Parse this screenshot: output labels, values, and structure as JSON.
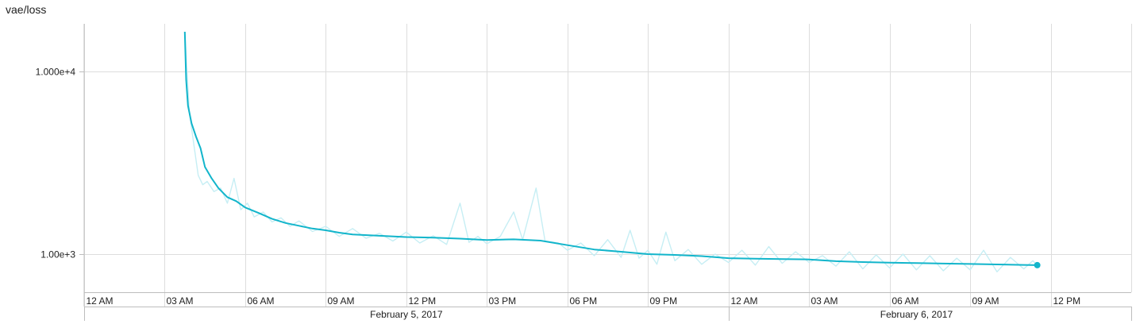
{
  "chart_data": {
    "type": "line",
    "title": "vae/loss",
    "y_scale": "log",
    "y_ticks": [
      {
        "value": 10000,
        "label": "1.000e+4"
      },
      {
        "value": 1000,
        "label": "1.00e+3"
      }
    ],
    "ylim": [
      600,
      18000
    ],
    "x_range": [
      "2017-02-05 00:00",
      "2017-02-06 15:00"
    ],
    "x_ticks": [
      {
        "time": "2017-02-05 00:00",
        "label": "12 AM"
      },
      {
        "time": "2017-02-05 03:00",
        "label": "03 AM"
      },
      {
        "time": "2017-02-05 06:00",
        "label": "06 AM"
      },
      {
        "time": "2017-02-05 09:00",
        "label": "09 AM"
      },
      {
        "time": "2017-02-05 12:00",
        "label": "12 PM"
      },
      {
        "time": "2017-02-05 15:00",
        "label": "03 PM"
      },
      {
        "time": "2017-02-05 18:00",
        "label": "06 PM"
      },
      {
        "time": "2017-02-05 21:00",
        "label": "09 PM"
      },
      {
        "time": "2017-02-06 00:00",
        "label": "12 AM"
      },
      {
        "time": "2017-02-06 03:00",
        "label": "03 AM"
      },
      {
        "time": "2017-02-06 06:00",
        "label": "06 AM"
      },
      {
        "time": "2017-02-06 09:00",
        "label": "09 AM"
      },
      {
        "time": "2017-02-06 12:00",
        "label": "12 PM"
      }
    ],
    "date_labels": [
      {
        "time": "2017-02-05 12:00",
        "label": "February 5, 2017"
      },
      {
        "time": "2017-02-06 07:00",
        "label": "February 6, 2017"
      }
    ],
    "grid": true,
    "series": [
      {
        "role": "smoothed",
        "color": "#12b5cb",
        "points": [
          [
            "2017-02-05 03:45",
            16500
          ],
          [
            "2017-02-05 03:48",
            9000
          ],
          [
            "2017-02-05 03:52",
            6500
          ],
          [
            "2017-02-05 04:00",
            5200
          ],
          [
            "2017-02-05 04:10",
            4400
          ],
          [
            "2017-02-05 04:20",
            3800
          ],
          [
            "2017-02-05 04:30",
            3000
          ],
          [
            "2017-02-05 04:45",
            2600
          ],
          [
            "2017-02-05 05:00",
            2300
          ],
          [
            "2017-02-05 05:20",
            2050
          ],
          [
            "2017-02-05 05:40",
            1950
          ],
          [
            "2017-02-05 06:00",
            1800
          ],
          [
            "2017-02-05 06:30",
            1680
          ],
          [
            "2017-02-05 07:00",
            1560
          ],
          [
            "2017-02-05 07:30",
            1480
          ],
          [
            "2017-02-05 08:00",
            1430
          ],
          [
            "2017-02-05 08:30",
            1380
          ],
          [
            "2017-02-05 09:00",
            1350
          ],
          [
            "2017-02-05 09:30",
            1310
          ],
          [
            "2017-02-05 10:00",
            1280
          ],
          [
            "2017-02-05 11:00",
            1260
          ],
          [
            "2017-02-05 12:00",
            1240
          ],
          [
            "2017-02-05 13:00",
            1230
          ],
          [
            "2017-02-05 14:00",
            1215
          ],
          [
            "2017-02-05 15:00",
            1195
          ],
          [
            "2017-02-05 16:00",
            1205
          ],
          [
            "2017-02-05 17:00",
            1185
          ],
          [
            "2017-02-05 18:00",
            1120
          ],
          [
            "2017-02-05 19:00",
            1060
          ],
          [
            "2017-02-05 20:00",
            1030
          ],
          [
            "2017-02-05 21:00",
            1000
          ],
          [
            "2017-02-05 22:00",
            990
          ],
          [
            "2017-02-05 23:00",
            975
          ],
          [
            "2017-02-06 00:00",
            950
          ],
          [
            "2017-02-06 01:00",
            945
          ],
          [
            "2017-02-06 02:00",
            940
          ],
          [
            "2017-02-06 03:00",
            935
          ],
          [
            "2017-02-06 04:00",
            915
          ],
          [
            "2017-02-06 05:00",
            905
          ],
          [
            "2017-02-06 06:00",
            898
          ],
          [
            "2017-02-06 07:00",
            893
          ],
          [
            "2017-02-06 08:00",
            888
          ],
          [
            "2017-02-06 09:00",
            883
          ],
          [
            "2017-02-06 10:00",
            878
          ],
          [
            "2017-02-06 11:00",
            873
          ],
          [
            "2017-02-06 11:30",
            870
          ]
        ]
      },
      {
        "role": "raw",
        "color": "#c6eef4",
        "points": [
          [
            "2017-02-05 03:45",
            16500
          ],
          [
            "2017-02-05 03:55",
            6000
          ],
          [
            "2017-02-05 04:05",
            4000
          ],
          [
            "2017-02-05 04:15",
            2700
          ],
          [
            "2017-02-05 04:25",
            2400
          ],
          [
            "2017-02-05 04:35",
            2500
          ],
          [
            "2017-02-05 04:50",
            2200
          ],
          [
            "2017-02-05 05:05",
            2300
          ],
          [
            "2017-02-05 05:20",
            1900
          ],
          [
            "2017-02-05 05:35",
            2600
          ],
          [
            "2017-02-05 05:50",
            1750
          ],
          [
            "2017-02-05 06:05",
            1900
          ],
          [
            "2017-02-05 06:20",
            1600
          ],
          [
            "2017-02-05 06:40",
            1700
          ],
          [
            "2017-02-05 07:00",
            1500
          ],
          [
            "2017-02-05 07:20",
            1580
          ],
          [
            "2017-02-05 07:40",
            1420
          ],
          [
            "2017-02-05 08:00",
            1520
          ],
          [
            "2017-02-05 08:30",
            1330
          ],
          [
            "2017-02-05 09:00",
            1420
          ],
          [
            "2017-02-05 09:30",
            1250
          ],
          [
            "2017-02-05 10:00",
            1380
          ],
          [
            "2017-02-05 10:30",
            1220
          ],
          [
            "2017-02-05 11:00",
            1300
          ],
          [
            "2017-02-05 11:30",
            1180
          ],
          [
            "2017-02-05 12:00",
            1320
          ],
          [
            "2017-02-05 12:30",
            1150
          ],
          [
            "2017-02-05 13:00",
            1260
          ],
          [
            "2017-02-05 13:30",
            1130
          ],
          [
            "2017-02-05 14:00",
            1900
          ],
          [
            "2017-02-05 14:20",
            1160
          ],
          [
            "2017-02-05 14:40",
            1250
          ],
          [
            "2017-02-05 15:00",
            1140
          ],
          [
            "2017-02-05 15:30",
            1250
          ],
          [
            "2017-02-05 16:00",
            1700
          ],
          [
            "2017-02-05 16:20",
            1200
          ],
          [
            "2017-02-05 16:50",
            2300
          ],
          [
            "2017-02-05 17:10",
            1180
          ],
          [
            "2017-02-05 17:40",
            1150
          ],
          [
            "2017-02-05 18:00",
            1050
          ],
          [
            "2017-02-05 18:30",
            1150
          ],
          [
            "2017-02-05 19:00",
            980
          ],
          [
            "2017-02-05 19:30",
            1200
          ],
          [
            "2017-02-05 20:00",
            960
          ],
          [
            "2017-02-05 20:20",
            1350
          ],
          [
            "2017-02-05 20:40",
            950
          ],
          [
            "2017-02-05 21:00",
            1050
          ],
          [
            "2017-02-05 21:20",
            880
          ],
          [
            "2017-02-05 21:40",
            1320
          ],
          [
            "2017-02-05 22:00",
            920
          ],
          [
            "2017-02-05 22:30",
            1060
          ],
          [
            "2017-02-05 23:00",
            880
          ],
          [
            "2017-02-05 23:30",
            1000
          ],
          [
            "2017-02-06 00:00",
            900
          ],
          [
            "2017-02-06 00:30",
            1050
          ],
          [
            "2017-02-06 01:00",
            870
          ],
          [
            "2017-02-06 01:30",
            1100
          ],
          [
            "2017-02-06 02:00",
            890
          ],
          [
            "2017-02-06 02:30",
            1030
          ],
          [
            "2017-02-06 03:00",
            900
          ],
          [
            "2017-02-06 03:30",
            980
          ],
          [
            "2017-02-06 04:00",
            860
          ],
          [
            "2017-02-06 04:30",
            1030
          ],
          [
            "2017-02-06 05:00",
            830
          ],
          [
            "2017-02-06 05:30",
            990
          ],
          [
            "2017-02-06 06:00",
            840
          ],
          [
            "2017-02-06 06:30",
            1000
          ],
          [
            "2017-02-06 07:00",
            820
          ],
          [
            "2017-02-06 07:30",
            980
          ],
          [
            "2017-02-06 08:00",
            810
          ],
          [
            "2017-02-06 08:30",
            950
          ],
          [
            "2017-02-06 09:00",
            820
          ],
          [
            "2017-02-06 09:30",
            1050
          ],
          [
            "2017-02-06 10:00",
            800
          ],
          [
            "2017-02-06 10:30",
            960
          ],
          [
            "2017-02-06 11:00",
            830
          ],
          [
            "2017-02-06 11:20",
            920
          ],
          [
            "2017-02-06 11:30",
            870
          ]
        ]
      }
    ]
  }
}
